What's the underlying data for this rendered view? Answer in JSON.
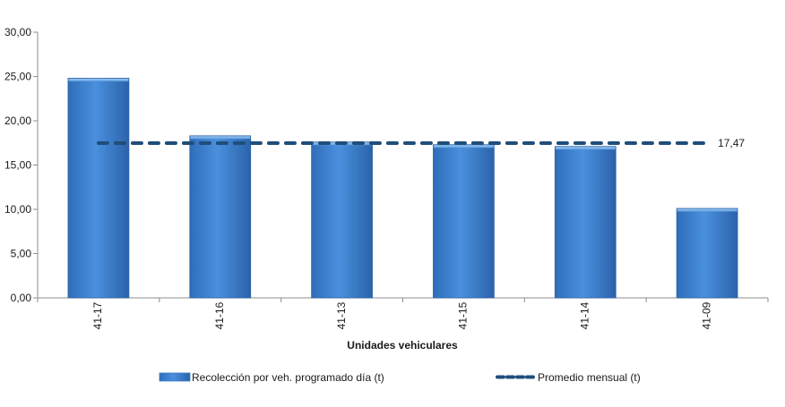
{
  "chart_data": {
    "type": "bar",
    "categories": [
      "41-17",
      "41-16",
      "41-13",
      "41-15",
      "41-14",
      "41-09"
    ],
    "series": [
      {
        "name": "Recolección por veh. programado día (t)",
        "type": "bar",
        "values": [
          24.8,
          18.3,
          17.6,
          17.3,
          17.1,
          10.1
        ],
        "color": "#3E7FD0"
      },
      {
        "name": "Promedio mensual (t)",
        "type": "line",
        "style": "dashed",
        "values": [
          17.47,
          17.47,
          17.47,
          17.47,
          17.47,
          17.47
        ],
        "color": "#1F4E79"
      }
    ],
    "ylim": [
      0,
      30
    ],
    "yticks": [
      "0,00",
      "5,00",
      "10,00",
      "15,00",
      "20,00",
      "25,00",
      "30,00"
    ],
    "xlabel": "Unidades vehiculares",
    "ylabel": "",
    "data_label": "17,47",
    "grid": false,
    "legend_position": "bottom"
  }
}
